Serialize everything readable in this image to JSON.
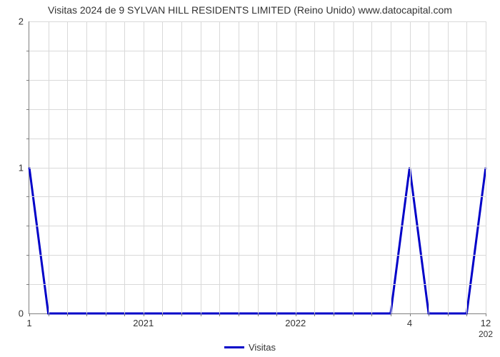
{
  "chart": {
    "type": "line",
    "title": "Visitas 2024 de 9 SYLVAN HILL RESIDENTS LIMITED (Reino Unido) www.datocapital.com",
    "title_fontsize": 14,
    "title_color": "#333333",
    "background_color": "#ffffff",
    "grid_color": "#d9d9d9",
    "axis_color": "#7f7f7f",
    "tick_label_fontsize": 13,
    "tick_label_color": "#333333",
    "x": {
      "n_slots": 24,
      "major_labels": [
        {
          "slot": 0,
          "label": "1"
        },
        {
          "slot": 6,
          "label": "2021"
        },
        {
          "slot": 14,
          "label": "2022"
        },
        {
          "slot": 20,
          "label": "4"
        },
        {
          "slot": 24,
          "label": "12"
        }
      ],
      "extra_label": {
        "slot": 24,
        "label": "202"
      },
      "minor_tick_every": 1
    },
    "y": {
      "min": 0,
      "max": 2,
      "major_ticks": [
        0,
        1,
        2
      ],
      "minor_subdivisions": 5
    },
    "series": {
      "name": "Visitas",
      "color": "#0000c8",
      "line_width": 3,
      "points": [
        {
          "slot": 0,
          "v": 1.0
        },
        {
          "slot": 1,
          "v": 0.0
        },
        {
          "slot": 2,
          "v": 0.0
        },
        {
          "slot": 3,
          "v": 0.0
        },
        {
          "slot": 4,
          "v": 0.0
        },
        {
          "slot": 5,
          "v": 0.0
        },
        {
          "slot": 6,
          "v": 0.0
        },
        {
          "slot": 7,
          "v": 0.0
        },
        {
          "slot": 8,
          "v": 0.0
        },
        {
          "slot": 9,
          "v": 0.0
        },
        {
          "slot": 10,
          "v": 0.0
        },
        {
          "slot": 11,
          "v": 0.0
        },
        {
          "slot": 12,
          "v": 0.0
        },
        {
          "slot": 13,
          "v": 0.0
        },
        {
          "slot": 14,
          "v": 0.0
        },
        {
          "slot": 15,
          "v": 0.0
        },
        {
          "slot": 16,
          "v": 0.0
        },
        {
          "slot": 17,
          "v": 0.0
        },
        {
          "slot": 18,
          "v": 0.0
        },
        {
          "slot": 19,
          "v": 0.0
        },
        {
          "slot": 20,
          "v": 1.0
        },
        {
          "slot": 21,
          "v": 0.0
        },
        {
          "slot": 22,
          "v": 0.0
        },
        {
          "slot": 23,
          "v": 0.0
        },
        {
          "slot": 24,
          "v": 1.0
        }
      ]
    },
    "legend": {
      "label": "Visitas",
      "position": "bottom-center"
    }
  }
}
